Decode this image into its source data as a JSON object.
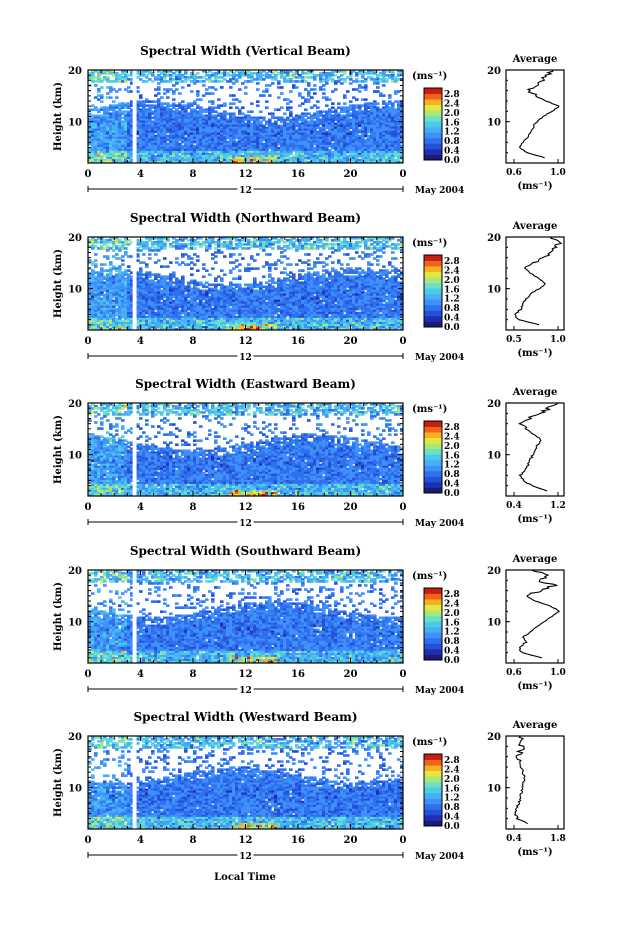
{
  "figure": {
    "common_xlabel": "Local Time",
    "day_label": "12",
    "date_label": "May 2004",
    "colorbar_unit": "(ms⁻¹)",
    "colorbar_ticks": [
      "0.0",
      "0.4",
      "0.8",
      "1.2",
      "1.6",
      "2.0",
      "2.4",
      "2.8"
    ],
    "average_title": "Average",
    "average_xlabel": "(ms⁻¹)",
    "ylabel": "Height (km)"
  },
  "colors": [
    "#1a1a7a",
    "#1f2fb0",
    "#2550d8",
    "#2f70ef",
    "#3f90fa",
    "#47b0f5",
    "#49cde6",
    "#6ddfc8",
    "#a8e87a",
    "#e5e83a",
    "#f7b023",
    "#ef6419",
    "#c71e10"
  ],
  "chart_data": [
    {
      "type": "heatmap",
      "title": "Spectral Width (Vertical Beam)",
      "xlabel": "Local Time",
      "ylabel": "Height (km)",
      "x_ticks": [
        "0",
        "4",
        "8",
        "12",
        "16",
        "20",
        "0"
      ],
      "y_ticks": [
        "10",
        "20"
      ],
      "xlim": [
        0,
        24
      ],
      "ylim": [
        2,
        20
      ],
      "colorbar_range": [
        0.0,
        2.8
      ],
      "data_gap_hours": [
        3.4,
        3.7
      ],
      "average_profile": {
        "xticks": [
          "0.6",
          "1.0"
        ],
        "xlim": [
          0.4,
          1.0
        ],
        "heights": [
          3,
          4,
          5,
          6,
          7,
          8,
          9,
          10,
          11,
          12,
          13,
          14,
          15,
          16,
          17,
          18,
          19,
          20
        ],
        "values": [
          0.8,
          0.62,
          0.55,
          0.57,
          0.62,
          0.66,
          0.68,
          0.72,
          0.78,
          0.88,
          0.95,
          0.82,
          0.7,
          0.64,
          0.72,
          0.78,
          0.82,
          0.88
        ]
      }
    },
    {
      "type": "heatmap",
      "title": "Spectral Width (Northward Beam)",
      "xlabel": "Local Time",
      "ylabel": "Height (km)",
      "x_ticks": [
        "0",
        "4",
        "8",
        "12",
        "16",
        "20",
        "0"
      ],
      "y_ticks": [
        "10",
        "20"
      ],
      "xlim": [
        0,
        24
      ],
      "ylim": [
        2,
        20
      ],
      "colorbar_range": [
        0.0,
        2.8
      ],
      "data_gap_hours": [
        3.4,
        3.7
      ],
      "average_profile": {
        "xticks": [
          "0.5",
          "1.0"
        ],
        "xlim": [
          0.4,
          1.1
        ],
        "heights": [
          3,
          4,
          5,
          6,
          7,
          8,
          9,
          10,
          11,
          12,
          13,
          14,
          15,
          16,
          17,
          18,
          19,
          20
        ],
        "values": [
          0.8,
          0.55,
          0.5,
          0.58,
          0.6,
          0.64,
          0.7,
          0.8,
          0.88,
          0.8,
          0.7,
          0.62,
          0.72,
          0.85,
          0.92,
          1.0,
          1.05,
          0.95
        ]
      }
    },
    {
      "type": "heatmap",
      "title": "Spectral Width (Eastward Beam)",
      "xlabel": "Local Time",
      "ylabel": "Height (km)",
      "x_ticks": [
        "0",
        "4",
        "8",
        "12",
        "16",
        "20",
        "0"
      ],
      "y_ticks": [
        "10",
        "20"
      ],
      "xlim": [
        0,
        24
      ],
      "ylim": [
        2,
        20
      ],
      "colorbar_range": [
        0.0,
        2.8
      ],
      "data_gap_hours": [
        3.4,
        3.7
      ],
      "average_profile": {
        "xticks": [
          "0.4",
          "1.2"
        ],
        "xlim": [
          0.3,
          1.3
        ],
        "heights": [
          3,
          4,
          5,
          6,
          7,
          8,
          9,
          10,
          11,
          12,
          13,
          14,
          15,
          16,
          17,
          18,
          19,
          20
        ],
        "values": [
          1.0,
          0.75,
          0.6,
          0.55,
          0.62,
          0.68,
          0.72,
          0.76,
          0.8,
          0.85,
          0.9,
          0.78,
          0.62,
          0.55,
          0.7,
          0.9,
          1.05,
          1.2
        ]
      }
    },
    {
      "type": "heatmap",
      "title": "Spectral Width (Southward Beam)",
      "xlabel": "Local Time",
      "ylabel": "Height (km)",
      "x_ticks": [
        "0",
        "4",
        "8",
        "12",
        "16",
        "20",
        "0"
      ],
      "y_ticks": [
        "10",
        "20"
      ],
      "xlim": [
        0,
        24
      ],
      "ylim": [
        2,
        20
      ],
      "colorbar_range": [
        0.0,
        2.8
      ],
      "data_gap_hours": [
        3.4,
        3.7
      ],
      "average_profile": {
        "xticks": [
          "0.6",
          "1.0"
        ],
        "xlim": [
          0.45,
          1.05
        ],
        "heights": [
          3,
          4,
          5,
          6,
          7,
          8,
          9,
          10,
          11,
          12,
          13,
          14,
          15,
          16,
          17,
          18,
          19,
          20
        ],
        "values": [
          0.82,
          0.62,
          0.58,
          0.66,
          0.62,
          0.7,
          0.76,
          0.84,
          0.92,
          1.0,
          0.92,
          0.76,
          0.66,
          0.8,
          0.95,
          0.78,
          0.9,
          0.72
        ]
      }
    },
    {
      "type": "heatmap",
      "title": "Spectral Width (Westward Beam)",
      "xlabel": "Local Time",
      "ylabel": "Height (km)",
      "x_ticks": [
        "0",
        "4",
        "8",
        "12",
        "16",
        "20",
        "0"
      ],
      "y_ticks": [
        "10",
        "20"
      ],
      "xlim": [
        0,
        24
      ],
      "ylim": [
        2,
        20
      ],
      "colorbar_range": [
        0.0,
        2.8
      ],
      "data_gap_hours": [
        3.4,
        3.7
      ],
      "average_profile": {
        "xticks": [
          "0.4",
          "1.8"
        ],
        "xlim": [
          0.3,
          1.9
        ],
        "heights": [
          3,
          4,
          5,
          6,
          7,
          8,
          9,
          10,
          11,
          12,
          13,
          14,
          15,
          16,
          17,
          18,
          19,
          20
        ],
        "values": [
          0.9,
          0.62,
          0.55,
          0.58,
          0.66,
          0.7,
          0.72,
          0.74,
          0.78,
          0.8,
          0.78,
          0.72,
          0.66,
          0.62,
          0.7,
          0.74,
          0.66,
          0.7
        ]
      }
    }
  ]
}
